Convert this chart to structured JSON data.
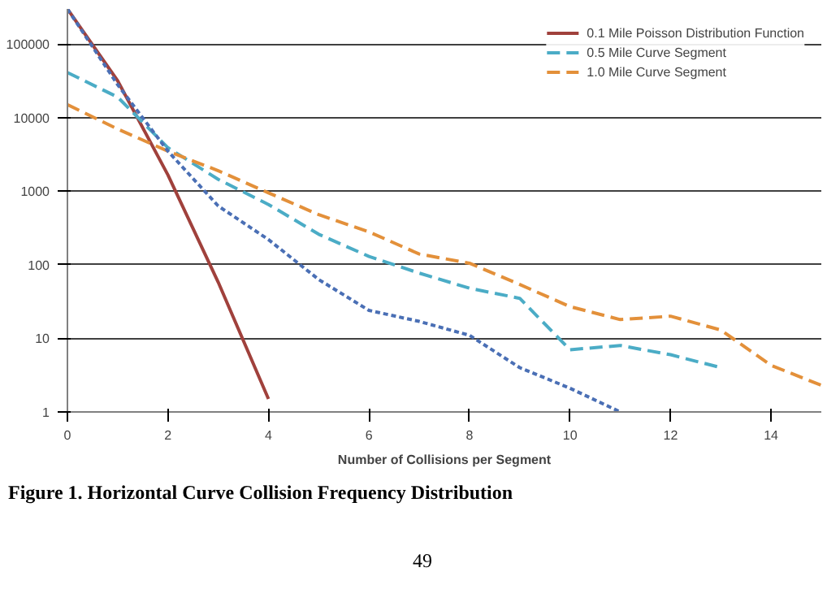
{
  "chart_data": {
    "type": "line",
    "xlabel": "Number of Collisions per Segment",
    "x": [
      0,
      1,
      2,
      3,
      4,
      5,
      6,
      7,
      8,
      9,
      10,
      11,
      12,
      13,
      14,
      15
    ],
    "series": [
      {
        "name": "0.1 Mile Poisson Distribution Function",
        "color": "#a0413c",
        "line_style": "solid",
        "x": [
          0,
          1,
          2,
          3,
          4
        ],
        "values": [
          300000,
          31600,
          1660,
          58,
          1.5
        ]
      },
      {
        "name": "0.5 Mile Curve Segment",
        "color": "#4bacc6",
        "line_style": "dashed",
        "x": [
          0,
          1,
          2,
          3,
          4,
          5,
          6,
          7,
          8,
          9,
          10,
          11,
          12,
          13
        ],
        "values": [
          41000,
          19000,
          3900,
          1450,
          660,
          260,
          130,
          77,
          48,
          35,
          7,
          8,
          6,
          4
        ]
      },
      {
        "name": "1.0 Mile Curve Segment",
        "color": "#e3903a",
        "line_style": "dashed",
        "values": [
          15000,
          7000,
          3500,
          1900,
          950,
          480,
          280,
          140,
          105,
          54,
          27,
          18,
          20,
          13,
          4.3,
          2.3
        ]
      },
      {
        "color": "#4a6fb5",
        "line_style": "dotted",
        "x": [
          0,
          1,
          2,
          3,
          4,
          5,
          6,
          7,
          8,
          9,
          10,
          11
        ],
        "values": [
          300000,
          28000,
          3500,
          630,
          220,
          63,
          24,
          17,
          11,
          4,
          2.1,
          1.0
        ]
      }
    ],
    "log": "y",
    "xlim": [
      0,
      15
    ],
    "ylim": [
      1,
      300000
    ],
    "xticks": [
      0,
      2,
      4,
      6,
      8,
      10,
      12,
      14
    ],
    "yticks": [
      1,
      10,
      100,
      1000,
      10000,
      100000
    ],
    "grid": "y",
    "legend": "top right",
    "marker": "none",
    "annotations": [
      "Figure 1. Horizontal Curve Collision Frequency Distribution",
      "49"
    ]
  }
}
